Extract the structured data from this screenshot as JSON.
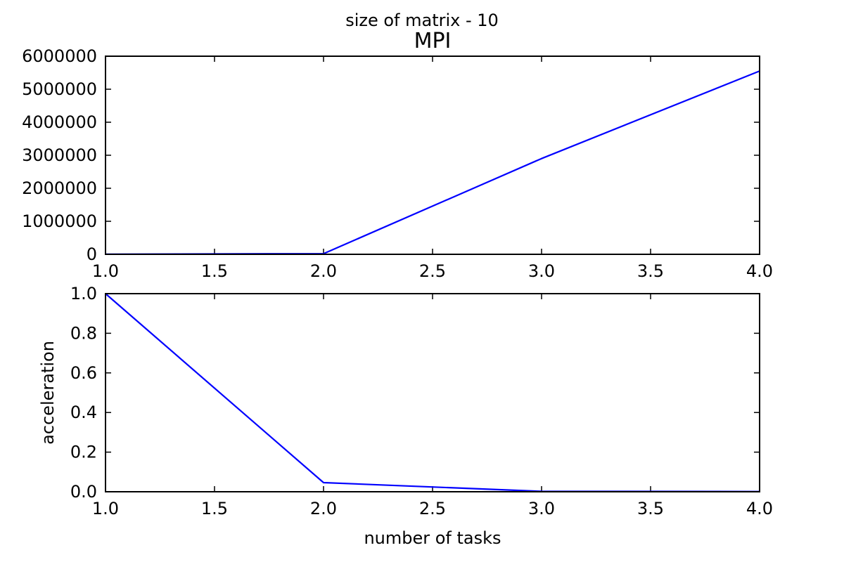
{
  "figure": {
    "suptitle": "size of matrix - 10"
  },
  "chart_data": [
    {
      "type": "line",
      "title": "MPI",
      "xlabel": "",
      "ylabel": "",
      "xlim": [
        1.0,
        4.0
      ],
      "ylim": [
        0,
        6000000
      ],
      "xticks": [
        "1.0",
        "1.5",
        "2.0",
        "2.5",
        "3.0",
        "3.5",
        "4.0"
      ],
      "yticks": [
        "0",
        "1000000",
        "2000000",
        "3000000",
        "4000000",
        "5000000",
        "6000000"
      ],
      "grid": false,
      "series": [
        {
          "color": "#0000ff",
          "x": [
            1,
            2,
            3,
            4
          ],
          "y": [
            5000,
            20000,
            2900000,
            5550000
          ]
        }
      ]
    },
    {
      "type": "line",
      "title": "",
      "xlabel": "number of tasks",
      "ylabel": "acceleration",
      "xlim": [
        1.0,
        4.0
      ],
      "ylim": [
        0.0,
        1.0
      ],
      "xticks": [
        "1.0",
        "1.5",
        "2.0",
        "2.5",
        "3.0",
        "3.5",
        "4.0"
      ],
      "yticks": [
        "0.0",
        "0.2",
        "0.4",
        "0.6",
        "0.8",
        "1.0"
      ],
      "grid": false,
      "series": [
        {
          "color": "#0000ff",
          "x": [
            1,
            2,
            3,
            4
          ],
          "y": [
            1.0,
            0.046,
            0.002,
            0.001
          ]
        }
      ]
    }
  ]
}
